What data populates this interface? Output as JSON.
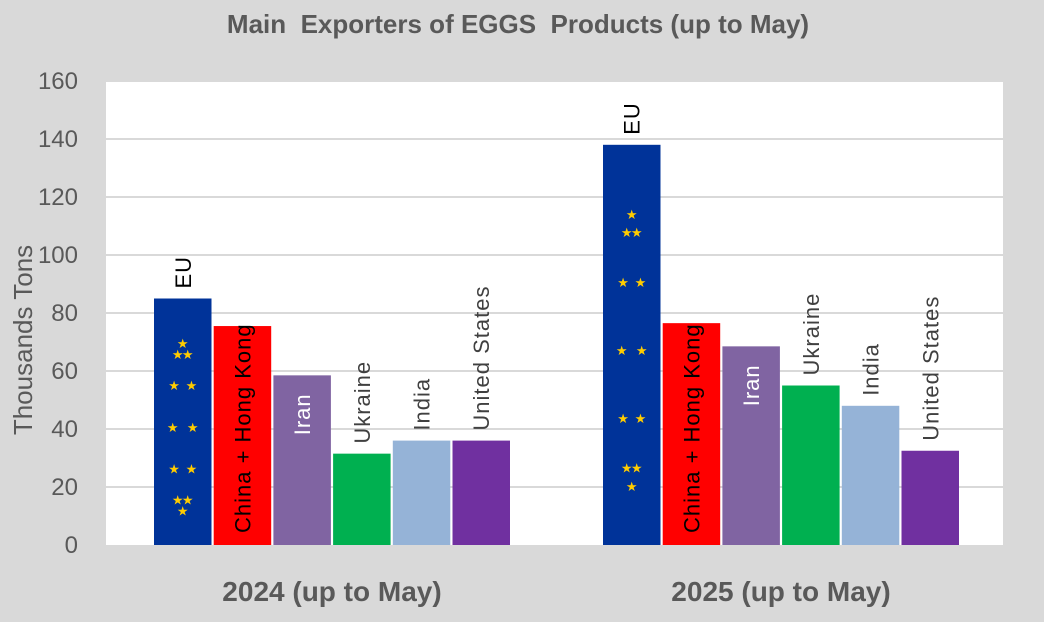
{
  "chart_data": {
    "type": "bar",
    "title": "Main  Exporters of EGGS  Products (up to May)",
    "ylabel": "Thousands Tons",
    "xlabel": "",
    "ylim": [
      0,
      160
    ],
    "yticks": [
      0,
      20,
      40,
      60,
      80,
      100,
      120,
      140,
      160
    ],
    "grid": true,
    "legend": "none",
    "categories": [
      "2024 (up to May)",
      "2025 (up to May)"
    ],
    "series": [
      {
        "name": "EU",
        "values": [
          85,
          138
        ],
        "color": "#003399",
        "label_color": "#000000",
        "pattern": "eu-flag-stars"
      },
      {
        "name": "China + Hong Kong",
        "values": [
          75.5,
          76.5
        ],
        "color": "#ff0000",
        "label_color": "#000000"
      },
      {
        "name": "Iran",
        "values": [
          58.5,
          68.5
        ],
        "color": "#8064a2",
        "label_color": "#ffffff"
      },
      {
        "name": "Ukraine",
        "values": [
          31.5,
          55
        ],
        "color": "#00b050",
        "label_color": "#404040"
      },
      {
        "name": "India",
        "values": [
          36,
          48
        ],
        "color": "#95b3d7",
        "label_color": "#404040"
      },
      {
        "name": "United States",
        "values": [
          36,
          32.5
        ],
        "color": "#7030a0",
        "label_color": "#404040"
      }
    ]
  }
}
